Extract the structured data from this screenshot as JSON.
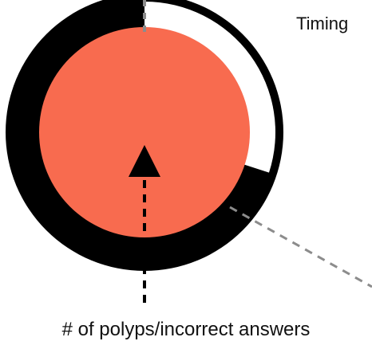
{
  "labels": {
    "timing": "Timing",
    "polyps": "# of polyps/incorrect answers"
  },
  "timer": {
    "remaining_fraction": 0.3
  },
  "colors": {
    "background": "#ffffff",
    "ring": "#000000",
    "core": "#f86b4f",
    "dashed_line": "#8c8c8c",
    "arrow": "#000000"
  }
}
